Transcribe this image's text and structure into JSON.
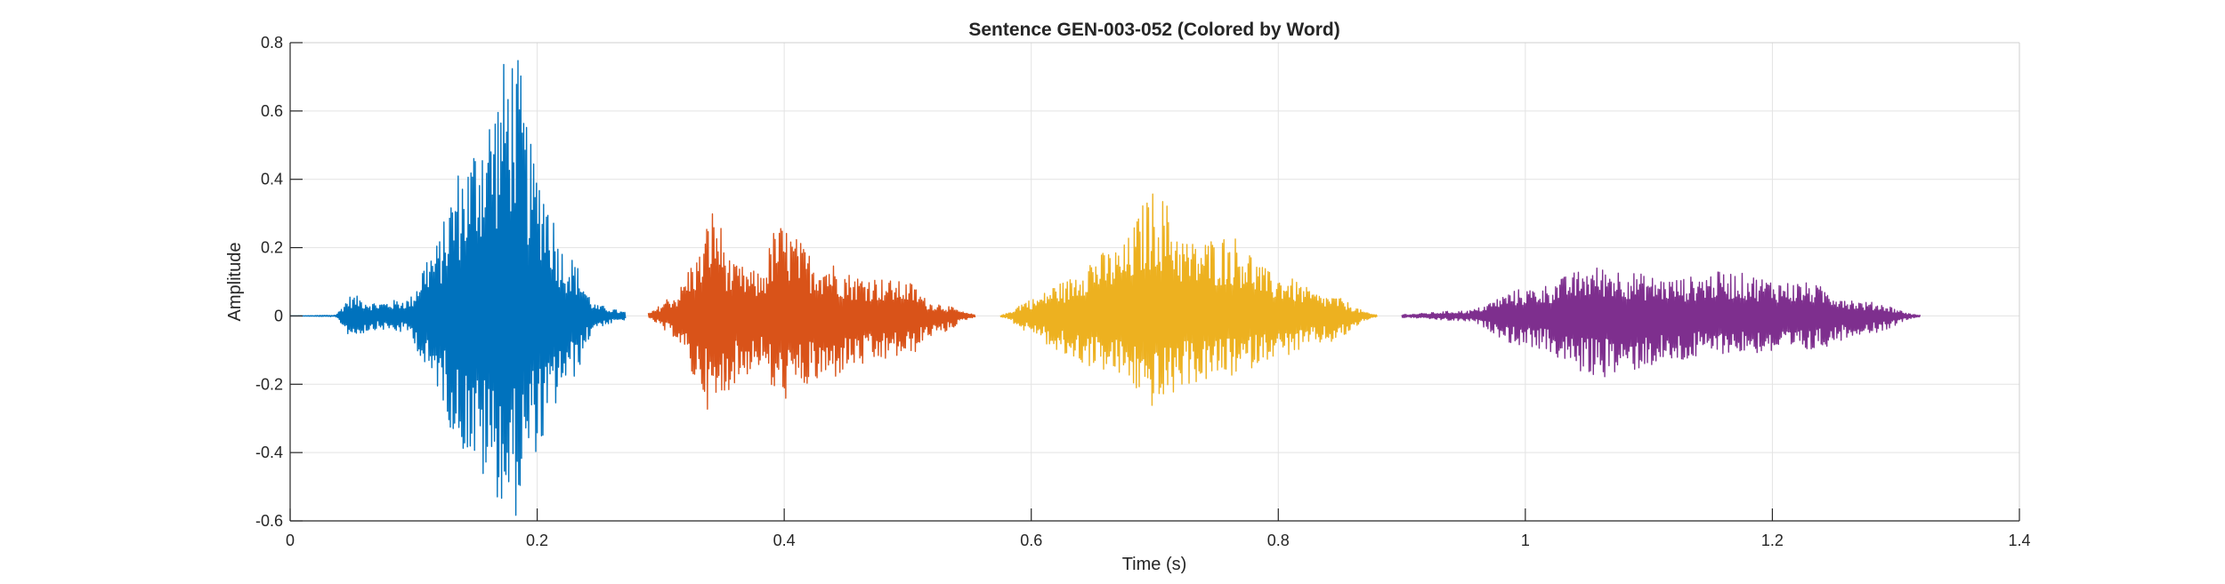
{
  "chart_data": {
    "type": "line",
    "title": "Sentence GEN-003-052 (Colored by Word)",
    "xlabel": "Time (s)",
    "ylabel": "Amplitude",
    "xlim": [
      0,
      1.4
    ],
    "ylim": [
      -0.6,
      0.8
    ],
    "grid": true,
    "legend": "none",
    "x_ticks": [
      0,
      0.2,
      0.4,
      0.6,
      0.8,
      1,
      1.2,
      1.4
    ],
    "x_tick_labels": [
      "0",
      "0.2",
      "0.4",
      "0.6",
      "0.8",
      "1",
      "1.2",
      "1.4"
    ],
    "y_ticks": [
      -0.6,
      -0.4,
      -0.2,
      0,
      0.2,
      0.4,
      0.6,
      0.8
    ],
    "y_tick_labels": [
      "-0.6",
      "-0.4",
      "-0.2",
      "0",
      "0.2",
      "0.4",
      "0.6",
      "0.8"
    ],
    "series": [
      {
        "color": "#0072BD",
        "t_start": 0.0,
        "t_end": 0.272,
        "envelope": [
          [
            0.0,
            0.0,
            0.0
          ],
          [
            0.035,
            0.002,
            0.002
          ],
          [
            0.05,
            0.06,
            0.06
          ],
          [
            0.07,
            0.04,
            0.04
          ],
          [
            0.095,
            0.05,
            0.05
          ],
          [
            0.115,
            0.2,
            0.2
          ],
          [
            0.14,
            0.45,
            0.4
          ],
          [
            0.16,
            0.62,
            0.5
          ],
          [
            0.18,
            0.8,
            0.6
          ],
          [
            0.2,
            0.45,
            0.4
          ],
          [
            0.225,
            0.18,
            0.2
          ],
          [
            0.25,
            0.03,
            0.03
          ],
          [
            0.272,
            0.012,
            0.012
          ]
        ]
      },
      {
        "color": "#D95319",
        "t_start": 0.29,
        "t_end": 0.555,
        "envelope": [
          [
            0.29,
            0.01,
            0.01
          ],
          [
            0.31,
            0.06,
            0.06
          ],
          [
            0.33,
            0.18,
            0.2
          ],
          [
            0.342,
            0.32,
            0.3
          ],
          [
            0.36,
            0.15,
            0.2
          ],
          [
            0.38,
            0.13,
            0.15
          ],
          [
            0.395,
            0.27,
            0.25
          ],
          [
            0.43,
            0.17,
            0.2
          ],
          [
            0.46,
            0.12,
            0.15
          ],
          [
            0.5,
            0.1,
            0.12
          ],
          [
            0.52,
            0.04,
            0.06
          ],
          [
            0.555,
            0.005,
            0.005
          ]
        ]
      },
      {
        "color": "#EDB120",
        "t_start": 0.575,
        "t_end": 0.88,
        "envelope": [
          [
            0.575,
            0.003,
            0.003
          ],
          [
            0.6,
            0.05,
            0.05
          ],
          [
            0.625,
            0.1,
            0.12
          ],
          [
            0.65,
            0.18,
            0.15
          ],
          [
            0.67,
            0.2,
            0.18
          ],
          [
            0.7,
            0.37,
            0.27
          ],
          [
            0.73,
            0.22,
            0.2
          ],
          [
            0.76,
            0.24,
            0.18
          ],
          [
            0.8,
            0.12,
            0.12
          ],
          [
            0.84,
            0.06,
            0.08
          ],
          [
            0.88,
            0.004,
            0.004
          ]
        ]
      },
      {
        "color": "#7E2F8E",
        "t_start": 0.9,
        "t_end": 1.32,
        "envelope": [
          [
            0.9,
            0.005,
            0.005
          ],
          [
            0.95,
            0.015,
            0.015
          ],
          [
            1.0,
            0.08,
            0.09
          ],
          [
            1.06,
            0.145,
            0.18
          ],
          [
            1.12,
            0.11,
            0.14
          ],
          [
            1.16,
            0.13,
            0.11
          ],
          [
            1.22,
            0.1,
            0.11
          ],
          [
            1.28,
            0.04,
            0.05
          ],
          [
            1.32,
            0.003,
            0.003
          ]
        ]
      }
    ]
  }
}
